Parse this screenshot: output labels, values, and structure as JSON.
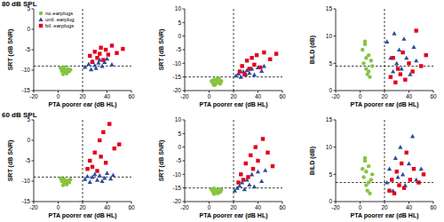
{
  "chart_data": [
    {
      "type": "scatter",
      "title": "80 dB SPL",
      "x_label": "PTA poorer ear (dB HL)",
      "y_label": "SRT (dB SNR)",
      "xlim": [
        -20,
        60
      ],
      "xticks": [
        -20,
        0,
        20,
        40,
        60
      ],
      "ylim": [
        -15,
        5
      ],
      "yticks": [
        -15,
        -10,
        -5,
        0,
        5
      ],
      "legend": "top left",
      "reference_lines": [
        {
          "axis": "x",
          "value": 20
        },
        {
          "axis": "y",
          "value": -9
        }
      ],
      "series": [
        {
          "name": "no earplugs",
          "color": "#86c440",
          "marker": "circle",
          "x": [
            2,
            3,
            4,
            5,
            5,
            6,
            7,
            8,
            9,
            10,
            4,
            7
          ],
          "values": [
            -9.5,
            -10.2,
            -9.8,
            -10.6,
            -9.3,
            -10,
            -10.8,
            -9.7,
            -10.3,
            -9.9,
            -11,
            -10.5
          ]
        },
        {
          "name": "unil. earplug",
          "color": "#2b4c9b",
          "marker": "triangle",
          "x": [
            22,
            25,
            27,
            28,
            30,
            31,
            33,
            34,
            36,
            38,
            40,
            44
          ],
          "values": [
            -9.2,
            -8.5,
            -9.8,
            -7.8,
            -8.8,
            -9.5,
            -8.2,
            -7.5,
            -9,
            -8,
            -7.2,
            -8.6
          ]
        },
        {
          "name": "bil. earplugs",
          "color": "#e2001a",
          "marker": "square",
          "x": [
            26,
            28,
            30,
            32,
            34,
            35,
            37,
            39,
            41,
            44,
            48,
            53
          ],
          "values": [
            -6.5,
            -8,
            -5.5,
            -7,
            -6,
            -4.5,
            -7.5,
            -5,
            -6.2,
            -4,
            -5.8,
            -4.8
          ]
        }
      ]
    },
    {
      "type": "scatter",
      "x_label": "PTA poorer ear (dB HL)",
      "y_label": "SRT (dB SNR)",
      "xlim": [
        -20,
        60
      ],
      "xticks": [
        -20,
        0,
        20,
        40,
        60
      ],
      "ylim": [
        -20,
        10
      ],
      "yticks": [
        -20,
        -15,
        -10,
        -5,
        0,
        5,
        10
      ],
      "reference_lines": [
        {
          "axis": "x",
          "value": 20
        },
        {
          "axis": "y",
          "value": -15
        }
      ],
      "series": [
        {
          "color": "#86c440",
          "marker": "circle",
          "x": [
            2,
            3,
            4,
            5,
            6,
            6,
            7,
            8,
            9,
            10,
            4,
            8
          ],
          "values": [
            -16.5,
            -17.2,
            -16,
            -17.8,
            -16.8,
            -15.8,
            -17,
            -16.2,
            -17.5,
            -16.6,
            -18,
            -15.5
          ]
        },
        {
          "color": "#2b4c9b",
          "marker": "triangle",
          "x": [
            22,
            24,
            26,
            28,
            30,
            31,
            33,
            35,
            37,
            40,
            43,
            45
          ],
          "values": [
            -14.5,
            -13.8,
            -15,
            -13,
            -14,
            -12.5,
            -13.5,
            -12,
            -14.2,
            -11.5,
            -12.8,
            -11
          ]
        },
        {
          "color": "#e2001a",
          "marker": "square",
          "x": [
            25,
            27,
            29,
            31,
            33,
            35,
            37,
            39,
            42,
            45,
            50,
            55
          ],
          "values": [
            -13,
            -11,
            -14,
            -9,
            -12,
            -8,
            -10.5,
            -7,
            -11.5,
            -6,
            -8.5,
            -6.5
          ]
        }
      ]
    },
    {
      "type": "scatter",
      "x_label": "PTA poorer ear (dB HL)",
      "y_label": "BILD (dB)",
      "xlim": [
        -20,
        60
      ],
      "xticks": [
        -20,
        0,
        20,
        40,
        60
      ],
      "ylim": [
        0,
        15
      ],
      "yticks": [
        0,
        5,
        10,
        15
      ],
      "reference_lines": [
        {
          "axis": "x",
          "value": 20
        },
        {
          "axis": "y",
          "value": 4.5
        }
      ],
      "series": [
        {
          "color": "#86c440",
          "marker": "circle",
          "x": [
            2,
            3,
            4,
            5,
            5,
            6,
            7,
            8,
            9,
            10,
            4,
            7
          ],
          "values": [
            7.5,
            5,
            8.5,
            4,
            6,
            3,
            6.5,
            2.5,
            5.5,
            4.5,
            9,
            3.5
          ]
        },
        {
          "color": "#2b4c9b",
          "marker": "triangle",
          "x": [
            22,
            25,
            27,
            28,
            30,
            32,
            34,
            36,
            38,
            41,
            44,
            46
          ],
          "values": [
            9,
            6,
            3.5,
            10.5,
            5,
            7.5,
            4,
            9.5,
            6,
            3,
            8,
            5.5
          ]
        },
        {
          "color": "#e2001a",
          "marker": "square",
          "x": [
            25,
            27,
            29,
            31,
            33,
            35,
            37,
            40,
            43,
            46,
            50,
            54
          ],
          "values": [
            2.5,
            6,
            1.5,
            4,
            3,
            7,
            2,
            5,
            3.5,
            11,
            4.5,
            6.5
          ]
        }
      ]
    },
    {
      "type": "scatter",
      "title": "60 dB SPL",
      "x_label": "PTA poorer ear (dB HL)",
      "y_label": "SRT (dB SNR)",
      "xlim": [
        -20,
        60
      ],
      "xticks": [
        -20,
        0,
        20,
        40,
        60
      ],
      "ylim": [
        -15,
        5
      ],
      "yticks": [
        -15,
        -10,
        -5,
        0,
        5
      ],
      "reference_lines": [
        {
          "axis": "x",
          "value": 20
        },
        {
          "axis": "y",
          "value": -9
        }
      ],
      "series": [
        {
          "color": "#86c440",
          "marker": "circle",
          "x": [
            2,
            3,
            4,
            5,
            5,
            6,
            7,
            8,
            9,
            10,
            4,
            7
          ],
          "values": [
            -9.3,
            -10,
            -9.7,
            -10.5,
            -9.5,
            -10.2,
            -10.8,
            -9.8,
            -10.3,
            -9.6,
            -11,
            -10.1
          ]
        },
        {
          "color": "#2b4c9b",
          "marker": "triangle",
          "x": [
            22,
            24,
            26,
            28,
            30,
            32,
            34,
            36,
            38,
            40,
            43,
            45
          ],
          "values": [
            -9.5,
            -8.8,
            -10.2,
            -9,
            -8.3,
            -9.7,
            -8.6,
            -10,
            -9.2,
            -8,
            -9.4,
            -8.5
          ]
        },
        {
          "color": "#e2001a",
          "marker": "square",
          "x": [
            24,
            26,
            28,
            30,
            32,
            34,
            35,
            37,
            39,
            42,
            46,
            50
          ],
          "values": [
            -7,
            -5,
            -6.5,
            -3,
            -7.5,
            0,
            -4,
            2,
            -5.5,
            4,
            -2,
            -1
          ]
        }
      ]
    },
    {
      "type": "scatter",
      "x_label": "PTA poorer ear (dB HL)",
      "y_label": "SRT (dB SNR)",
      "xlim": [
        -20,
        60
      ],
      "xticks": [
        -20,
        0,
        20,
        40,
        60
      ],
      "ylim": [
        -20,
        10
      ],
      "yticks": [
        -20,
        -15,
        -10,
        -5,
        0,
        5,
        10
      ],
      "reference_lines": [
        {
          "axis": "x",
          "value": 20
        },
        {
          "axis": "y",
          "value": -15
        }
      ],
      "series": [
        {
          "color": "#86c440",
          "marker": "circle",
          "x": [
            2,
            3,
            4,
            5,
            6,
            6,
            7,
            8,
            9,
            10,
            4,
            8
          ],
          "values": [
            -15.5,
            -16.3,
            -15.2,
            -16.8,
            -15.8,
            -16,
            -17,
            -15.4,
            -16.5,
            -15.7,
            -17.2,
            -16.1
          ]
        },
        {
          "color": "#2b4c9b",
          "marker": "triangle",
          "x": [
            21,
            23,
            25,
            27,
            29,
            31,
            33,
            35,
            37,
            40,
            43,
            46
          ],
          "values": [
            -16,
            -15,
            -14.2,
            -13,
            -15.5,
            -12,
            -13.8,
            -10,
            -14.5,
            -9,
            -12.5,
            -8.5
          ]
        },
        {
          "color": "#e2001a",
          "marker": "square",
          "x": [
            24,
            26,
            28,
            30,
            32,
            34,
            36,
            38,
            40,
            44,
            48,
            52
          ],
          "values": [
            -13,
            -10,
            -12,
            -6,
            -11,
            -3,
            -8,
            0,
            -5,
            3,
            -2,
            -7
          ]
        }
      ]
    },
    {
      "type": "scatter",
      "x_label": "PTA poorer ear (dB HL)",
      "y_label": "BILD (dB)",
      "xlim": [
        -20,
        60
      ],
      "xticks": [
        -20,
        0,
        20,
        40,
        60
      ],
      "ylim": [
        0,
        15
      ],
      "yticks": [
        0,
        5,
        10,
        15
      ],
      "reference_lines": [
        {
          "axis": "x",
          "value": 20
        },
        {
          "axis": "y",
          "value": 3.5
        }
      ],
      "series": [
        {
          "color": "#86c440",
          "marker": "circle",
          "x": [
            2,
            3,
            4,
            5,
            5,
            6,
            7,
            8,
            9,
            10,
            4,
            7
          ],
          "values": [
            6,
            4.5,
            7.5,
            3,
            5.5,
            2,
            6.5,
            1.5,
            4,
            5,
            8,
            3.5
          ]
        },
        {
          "color": "#2b4c9b",
          "marker": "triangle",
          "x": [
            22,
            24,
            27,
            29,
            31,
            33,
            35,
            37,
            40,
            43,
            46,
            50
          ],
          "values": [
            3.5,
            6,
            2,
            8,
            4.5,
            10,
            5,
            3,
            7,
            12,
            4,
            6
          ]
        },
        {
          "color": "#e2001a",
          "marker": "square",
          "x": [
            24,
            26,
            28,
            30,
            32,
            34,
            36,
            38,
            41,
            44,
            48,
            52
          ],
          "values": [
            2,
            4,
            1.5,
            5.5,
            3,
            7,
            2.5,
            9,
            4,
            6,
            3.5,
            5
          ]
        }
      ]
    }
  ]
}
